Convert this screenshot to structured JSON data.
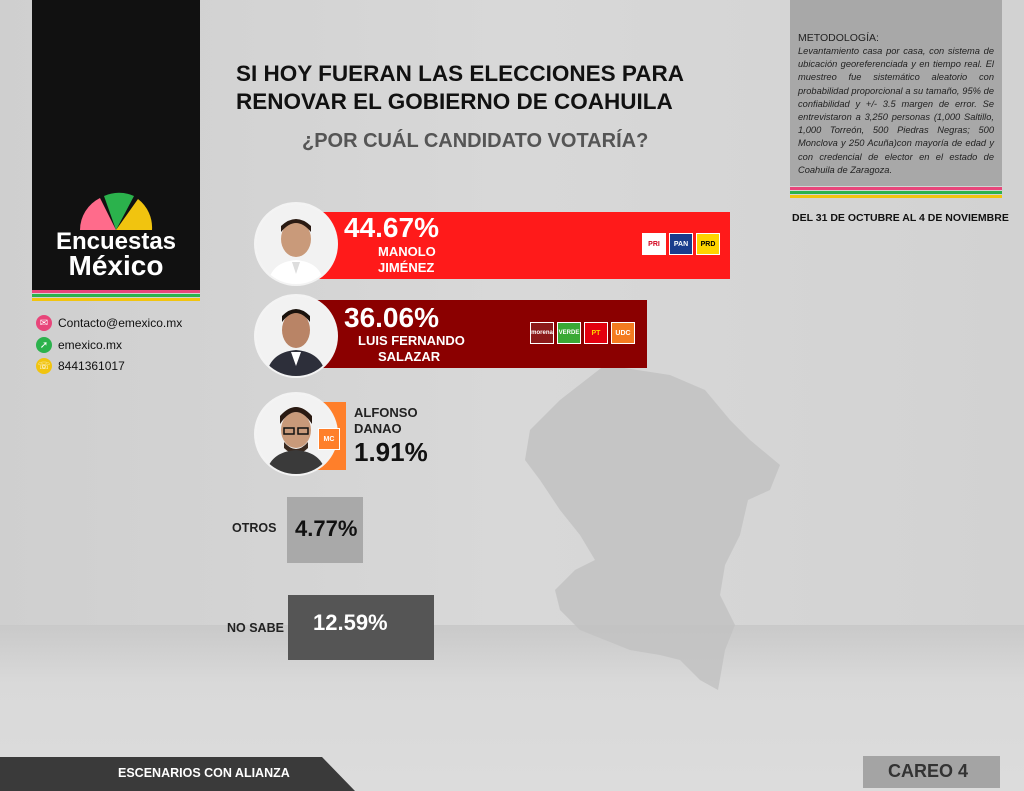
{
  "logo": {
    "line1": "Encuestas",
    "line2": "México"
  },
  "contacts": [
    {
      "icon": "mail-icon",
      "text": "Contacto@emexico.mx",
      "color": "#e8457a"
    },
    {
      "icon": "cursor-icon",
      "text": "emexico.mx",
      "color": "#2bb24c"
    },
    {
      "icon": "phone-icon",
      "text": "8441361017",
      "color": "#f1c40f"
    }
  ],
  "title": "SI HOY FUERAN LAS ELECCIONES PARA RENOVAR EL GOBIERNO DE COAHUILA",
  "subtitle": "¿POR CUÁL CANDIDATO VOTARÍA?",
  "methodology": {
    "heading": "METODOLOGÍA:",
    "body": "Levantamiento casa por casa, con sistema de ubicación georeferenciada y en tiempo real. El muestreo fue sistemático aleatorio con probabilidad proporcional a su tamaño, 95% de confiabilidad y +/- 3.5 margen de error. Se entrevistaron a 3,250 personas (1,000 Saltillo, 1,000 Torreón, 500 Piedras Negras; 500 Monclova y 250 Acuña)con mayoría de edad y con credencial de elector en el estado de Coahuila de Zaragoza."
  },
  "date": "DEL 31 DE OCTUBRE AL 4 DE NOVIEMBRE",
  "footer": {
    "scenario": "ESCENARIOS CON ALIANZA",
    "careo": "CAREO 4"
  },
  "colors": {
    "red": "#ff1a1a",
    "darkred": "#8b0000",
    "orange": "#ff7f2a",
    "gray_box": "#a9a9a9",
    "dark_box": "#555555"
  },
  "chart_data": {
    "type": "bar",
    "title": "SI HOY FUERAN LAS ELECCIONES PARA RENOVAR EL GOBIERNO DE COAHUILA",
    "subtitle": "¿POR CUÁL CANDIDATO VOTARÍA?",
    "categories": [
      "MANOLO JIMÉNEZ",
      "LUIS FERNANDO SALAZAR",
      "ALFONSO DANAO",
      "OTROS",
      "NO SABE"
    ],
    "values": [
      44.67,
      36.06,
      1.91,
      4.77,
      12.59
    ],
    "value_labels": [
      "44.67%",
      "36.06%",
      "1.91%",
      "4.77%",
      "12.59%"
    ],
    "candidates": [
      {
        "name_l1": "MANOLO",
        "name_l2": "JIMÉNEZ",
        "pct": "44.67%",
        "value": 44.67,
        "parties": [
          {
            "label": "PRI",
            "bg": "#ffffff",
            "fg": "#d3001b"
          },
          {
            "label": "PAN",
            "bg": "#1a3c8c",
            "fg": "#ffffff"
          },
          {
            "label": "PRD",
            "bg": "#ffd400",
            "fg": "#000000"
          }
        ]
      },
      {
        "name_l1": "LUIS FERNANDO",
        "name_l2": "SALAZAR",
        "pct": "36.06%",
        "value": 36.06,
        "parties": [
          {
            "label": "morena",
            "bg": "#8b1a1a",
            "fg": "#ffffff"
          },
          {
            "label": "VERDE",
            "bg": "#3aa935",
            "fg": "#ffffff"
          },
          {
            "label": "PT",
            "bg": "#e3000f",
            "fg": "#ffd400"
          },
          {
            "label": "UDC",
            "bg": "#f47b20",
            "fg": "#ffffff"
          }
        ]
      },
      {
        "name_l1": "ALFONSO",
        "name_l2": "DANAO",
        "pct": "1.91%",
        "value": 1.91,
        "parties": [
          {
            "label": "MC",
            "bg": "#ff7f2a",
            "fg": "#ffffff"
          }
        ]
      }
    ],
    "others": [
      {
        "label": "OTROS",
        "pct": "4.77%",
        "value": 4.77
      },
      {
        "label": "NO SABE",
        "pct": "12.59%",
        "value": 12.59
      }
    ]
  }
}
